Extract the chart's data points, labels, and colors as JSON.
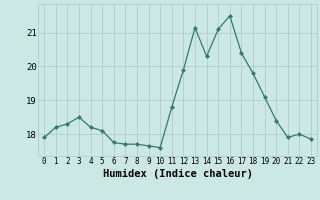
{
  "x": [
    0,
    1,
    2,
    3,
    4,
    5,
    6,
    7,
    8,
    9,
    10,
    11,
    12,
    13,
    14,
    15,
    16,
    17,
    18,
    19,
    20,
    21,
    22,
    23
  ],
  "y": [
    17.9,
    18.2,
    18.3,
    18.5,
    18.2,
    18.1,
    17.75,
    17.7,
    17.7,
    17.65,
    17.6,
    18.8,
    19.9,
    21.15,
    20.3,
    21.1,
    21.5,
    20.4,
    19.8,
    19.1,
    18.4,
    17.9,
    18.0,
    17.85
  ],
  "line_color": "#2e7d6e",
  "marker": "D",
  "marker_size": 2.0,
  "bg_color": "#cce8e4",
  "grid_color_major": "#b0cdc8",
  "grid_color_minor": "#d8edea",
  "xlabel": "Humidex (Indice chaleur)",
  "xlabel_fontsize": 7.5,
  "yticks": [
    18,
    19,
    20,
    21
  ],
  "ylim": [
    17.35,
    21.85
  ],
  "xlim": [
    -0.5,
    23.5
  ],
  "xtick_labels": [
    "0",
    "1",
    "2",
    "3",
    "4",
    "5",
    "6",
    "7",
    "8",
    "9",
    "10",
    "11",
    "12",
    "13",
    "14",
    "15",
    "16",
    "17",
    "18",
    "19",
    "20",
    "21",
    "22",
    "23"
  ]
}
